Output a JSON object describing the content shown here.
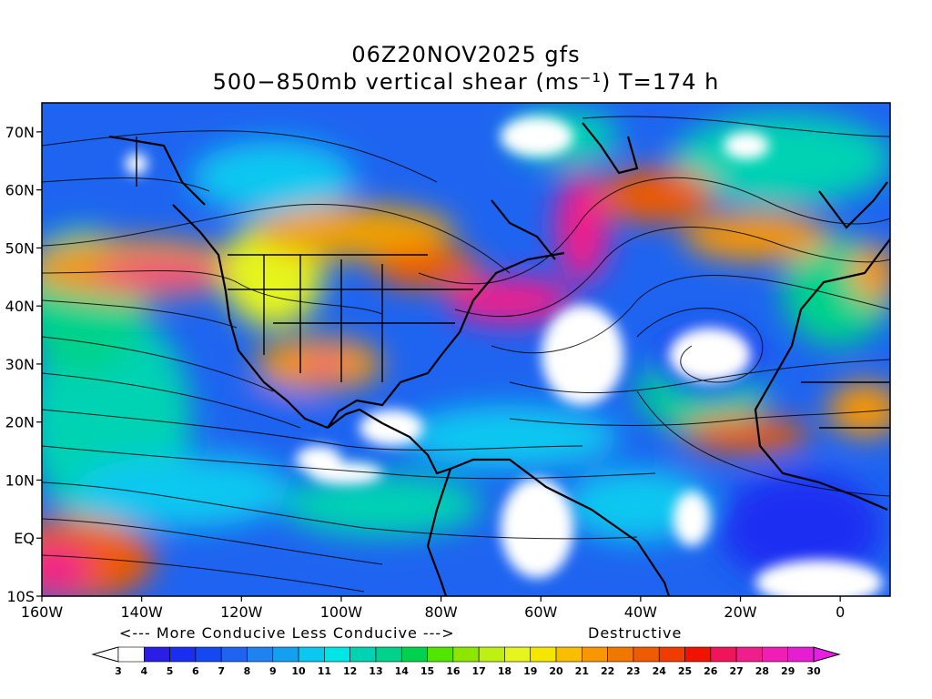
{
  "header": {
    "line1": "06Z20NOV2025 gfs",
    "line2": "500−850mb vertical shear (ms⁻¹) T=174 h"
  },
  "map": {
    "lat_labels": [
      "70N",
      "60N",
      "50N",
      "40N",
      "30N",
      "20N",
      "10N",
      "EQ",
      "10S"
    ],
    "lon_labels": [
      "160W",
      "140W",
      "120W",
      "100W",
      "80W",
      "60W",
      "40W",
      "20W",
      "0"
    ],
    "lon_range": [
      -160,
      10
    ],
    "lat_range": [
      -10,
      75
    ]
  },
  "legend": {
    "conducive_text": "<--- More Conducive   Less Conducive --->",
    "destructive_text": "Destructive",
    "levels": [
      "3",
      "4",
      "5",
      "6",
      "7",
      "8",
      "9",
      "10",
      "11",
      "12",
      "13",
      "14",
      "15",
      "16",
      "17",
      "18",
      "19",
      "20",
      "21",
      "22",
      "23",
      "24",
      "25",
      "26",
      "27",
      "28",
      "29",
      "30"
    ],
    "colors": [
      "#ffffff",
      "#2a1ee6",
      "#1a2ef2",
      "#1448f0",
      "#1e64f0",
      "#1e82f0",
      "#14a0f0",
      "#0ac8f0",
      "#00e6e6",
      "#00d2b4",
      "#00d28c",
      "#00d250",
      "#50e600",
      "#8ce600",
      "#bef014",
      "#e6f51e",
      "#f5e600",
      "#fabe00",
      "#fa9600",
      "#f07800",
      "#f05a00",
      "#f03c00",
      "#f01400",
      "#f0145a",
      "#f01e8c",
      "#f01eb4",
      "#e61ed2",
      "#e61ee6"
    ]
  }
}
